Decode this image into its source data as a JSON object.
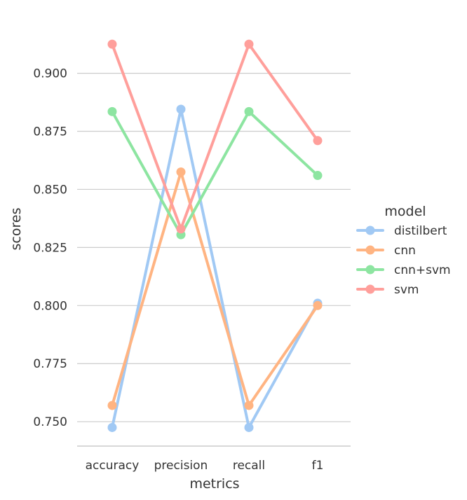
{
  "chart_data": {
    "type": "line",
    "xlabel": "metrics",
    "ylabel": "scores",
    "categories": [
      "accuracy",
      "precision",
      "recall",
      "f1"
    ],
    "ylim": [
      0.7395,
      0.9255
    ],
    "yticks": [
      "0.750",
      "0.775",
      "0.800",
      "0.825",
      "0.850",
      "0.875",
      "0.900"
    ],
    "grid": "horizontal",
    "legend": {
      "title": "model",
      "placement": "right"
    },
    "series": [
      {
        "name": "distilbert",
        "color": "#a1c9f4",
        "values": [
          0.7475,
          0.8845,
          0.7475,
          0.801
        ]
      },
      {
        "name": "cnn",
        "color": "#ffb482",
        "values": [
          0.757,
          0.8575,
          0.757,
          0.8
        ]
      },
      {
        "name": "cnn+svm",
        "color": "#8de5a1",
        "values": [
          0.8835,
          0.8305,
          0.8835,
          0.856
        ]
      },
      {
        "name": "svm",
        "color": "#ff9f9b",
        "values": [
          0.9125,
          0.833,
          0.9125,
          0.871
        ]
      }
    ]
  }
}
